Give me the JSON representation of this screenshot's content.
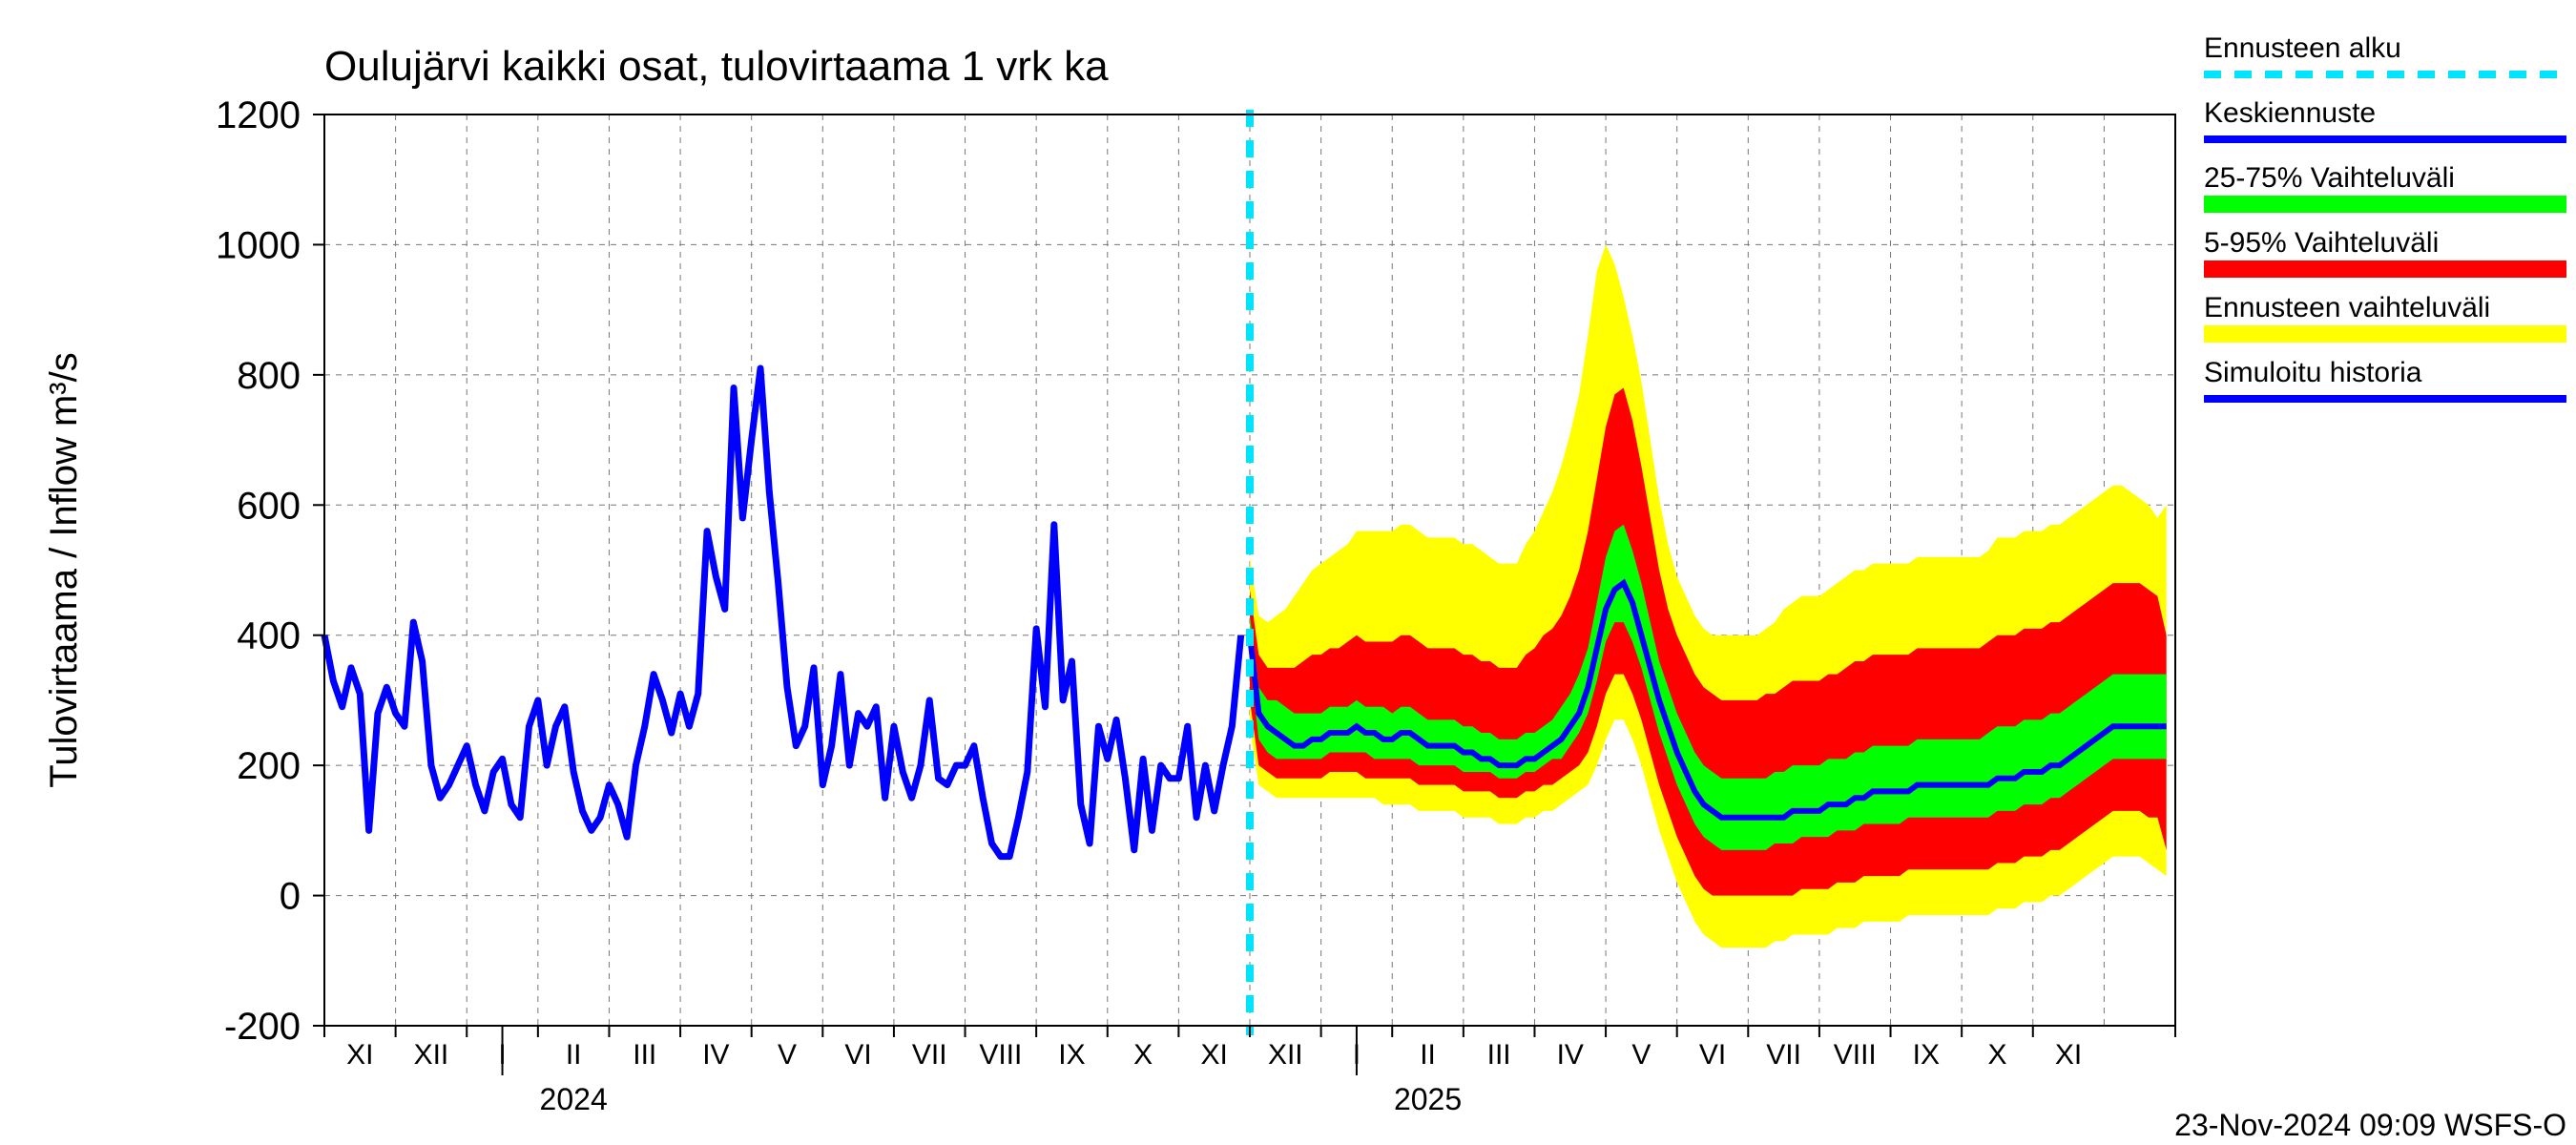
{
  "meta": {
    "title": "Oulujärvi kaikki osat, tulovirtaama 1 vrk ka",
    "ylabel": "Tulovirtaama / Inflow   m³/s",
    "footer": "23-Nov-2024 09:09 WSFS-O",
    "title_fontsize": 44,
    "ylabel_fontsize": 40,
    "footer_fontsize": 32,
    "tick_fontsize": 40,
    "xtick_fontsize": 30,
    "year_fontsize": 32
  },
  "colors": {
    "background": "#ffffff",
    "axis": "#000000",
    "grid": "#777777",
    "history_line": "#0000ff",
    "forecast_mean": "#0000ff",
    "band_inner": "#00ff00",
    "band_mid": "#ff0000",
    "band_outer": "#ffff00",
    "forecast_start": "#00e5ff",
    "text": "#000000"
  },
  "axes": {
    "ylim": [
      -200,
      1200
    ],
    "yticks": [
      -200,
      0,
      200,
      400,
      600,
      800,
      1000,
      1200
    ],
    "xlim_months": 26,
    "forecast_start_index": 13,
    "xticks_roman": [
      "XI",
      "XII",
      "I",
      "II",
      "III",
      "IV",
      "V",
      "VI",
      "VII",
      "VIII",
      "IX",
      "X",
      "XI",
      "XII",
      "I",
      "II",
      "III",
      "IV",
      "V",
      "VI",
      "VII",
      "VIII",
      "IX",
      "X",
      "XI"
    ],
    "year_labels": [
      {
        "label": "2024",
        "at_month_index": 3.5
      },
      {
        "label": "2025",
        "at_month_index": 15.5
      }
    ],
    "month_div_ticks_major": [
      2.5,
      14.5
    ]
  },
  "legend": {
    "items": [
      {
        "label": "Ennusteen alku",
        "color": "#00e5ff",
        "style": "dashed",
        "weight": 8
      },
      {
        "label": "Keskiennuste",
        "color": "#0000ff",
        "style": "solid",
        "weight": 8
      },
      {
        "label": "25-75% Vaihteluväli",
        "color": "#00ff00",
        "style": "band",
        "weight": 18
      },
      {
        "label": "5-95% Vaihteluväli",
        "color": "#ff0000",
        "style": "band",
        "weight": 18
      },
      {
        "label": "Ennusteen vaihteluväli",
        "color": "#ffff00",
        "style": "band",
        "weight": 18
      },
      {
        "label": "Simuloitu historia",
        "color": "#0000ff",
        "style": "solid",
        "weight": 8
      }
    ]
  },
  "line_widths": {
    "history": 7,
    "forecast_mean": 6,
    "forecast_start_dash": 8,
    "grid": 1,
    "axis": 2
  },
  "history": {
    "samples_per_month": 8,
    "values": [
      400,
      330,
      290,
      350,
      310,
      100,
      280,
      320,
      280,
      260,
      420,
      360,
      200,
      150,
      170,
      200,
      230,
      170,
      130,
      190,
      210,
      140,
      120,
      260,
      300,
      200,
      260,
      290,
      190,
      130,
      100,
      120,
      170,
      140,
      90,
      200,
      260,
      340,
      300,
      250,
      310,
      260,
      310,
      560,
      490,
      440,
      780,
      580,
      700,
      810,
      620,
      480,
      320,
      230,
      260,
      350,
      170,
      230,
      340,
      200,
      280,
      260,
      290,
      150,
      260,
      190,
      150,
      200,
      300,
      180,
      170,
      200,
      200,
      230,
      150,
      80,
      60,
      60,
      120,
      190,
      410,
      290,
      570,
      300,
      360,
      140,
      80,
      260,
      210,
      270,
      180,
      70,
      210,
      100,
      200,
      180,
      180,
      260,
      120,
      200,
      130,
      200,
      260,
      400
    ]
  },
  "forecast": {
    "samples_per_month": 8,
    "mean": [
      400,
      280,
      260,
      250,
      240,
      230,
      230,
      240,
      240,
      250,
      250,
      250,
      260,
      250,
      250,
      240,
      240,
      250,
      250,
      240,
      230,
      230,
      230,
      230,
      220,
      220,
      210,
      210,
      200,
      200,
      200,
      210,
      210,
      220,
      230,
      240,
      260,
      280,
      320,
      380,
      440,
      470,
      480,
      450,
      400,
      350,
      300,
      260,
      220,
      190,
      160,
      140,
      130,
      120,
      120,
      120,
      120,
      120,
      120,
      120,
      120,
      130,
      130,
      130,
      130,
      140,
      140,
      140,
      150,
      150,
      160,
      160,
      160,
      160,
      160,
      170,
      170,
      170,
      170,
      170,
      170,
      170,
      170,
      170,
      180,
      180,
      180,
      190,
      190,
      190,
      200,
      200,
      210,
      220,
      230,
      240,
      250,
      260,
      260,
      260,
      260,
      260,
      260,
      260
    ],
    "p25": [
      360,
      240,
      220,
      210,
      210,
      210,
      210,
      210,
      210,
      220,
      220,
      220,
      220,
      220,
      210,
      210,
      210,
      210,
      210,
      200,
      200,
      200,
      200,
      200,
      190,
      190,
      190,
      190,
      180,
      180,
      180,
      190,
      190,
      200,
      210,
      210,
      230,
      250,
      280,
      330,
      390,
      420,
      420,
      390,
      350,
      300,
      250,
      210,
      170,
      140,
      110,
      90,
      80,
      70,
      70,
      70,
      70,
      70,
      70,
      80,
      80,
      80,
      90,
      90,
      90,
      90,
      100,
      100,
      100,
      110,
      110,
      110,
      110,
      110,
      120,
      120,
      120,
      120,
      120,
      120,
      120,
      120,
      120,
      120,
      130,
      130,
      130,
      140,
      140,
      140,
      150,
      150,
      160,
      170,
      180,
      190,
      200,
      210,
      210,
      210,
      210,
      210,
      210,
      210
    ],
    "p75": [
      430,
      320,
      300,
      300,
      290,
      280,
      280,
      280,
      280,
      290,
      290,
      290,
      300,
      290,
      290,
      290,
      280,
      290,
      290,
      280,
      270,
      270,
      270,
      270,
      260,
      260,
      250,
      250,
      240,
      240,
      240,
      250,
      250,
      260,
      270,
      290,
      310,
      340,
      380,
      450,
      520,
      560,
      570,
      530,
      480,
      420,
      360,
      320,
      280,
      250,
      220,
      200,
      190,
      180,
      180,
      180,
      180,
      180,
      180,
      190,
      190,
      200,
      200,
      200,
      200,
      210,
      210,
      210,
      220,
      220,
      230,
      230,
      230,
      230,
      230,
      240,
      240,
      240,
      240,
      240,
      240,
      240,
      240,
      250,
      260,
      260,
      260,
      270,
      270,
      270,
      280,
      280,
      290,
      300,
      310,
      320,
      330,
      340,
      340,
      340,
      340,
      340,
      340,
      340
    ],
    "p5": [
      300,
      200,
      190,
      180,
      180,
      180,
      180,
      180,
      180,
      190,
      190,
      190,
      190,
      180,
      180,
      180,
      180,
      180,
      180,
      170,
      170,
      170,
      170,
      170,
      160,
      160,
      160,
      160,
      150,
      150,
      150,
      160,
      160,
      170,
      170,
      180,
      190,
      200,
      220,
      260,
      310,
      340,
      340,
      310,
      270,
      220,
      170,
      130,
      90,
      60,
      30,
      10,
      0,
      0,
      0,
      0,
      0,
      0,
      0,
      0,
      0,
      0,
      10,
      10,
      10,
      10,
      20,
      20,
      20,
      30,
      30,
      30,
      30,
      30,
      40,
      40,
      40,
      40,
      40,
      40,
      40,
      40,
      40,
      40,
      50,
      50,
      50,
      60,
      60,
      60,
      70,
      70,
      80,
      90,
      100,
      110,
      120,
      130,
      130,
      130,
      130,
      120,
      120,
      70
    ],
    "p95": [
      470,
      370,
      350,
      350,
      350,
      350,
      360,
      370,
      370,
      380,
      380,
      390,
      400,
      390,
      390,
      390,
      390,
      400,
      400,
      390,
      380,
      380,
      380,
      380,
      370,
      370,
      360,
      360,
      350,
      350,
      350,
      370,
      380,
      400,
      410,
      430,
      460,
      500,
      560,
      640,
      720,
      770,
      780,
      730,
      660,
      580,
      500,
      440,
      400,
      370,
      340,
      320,
      310,
      300,
      300,
      300,
      300,
      300,
      310,
      310,
      320,
      330,
      330,
      330,
      330,
      340,
      340,
      350,
      360,
      360,
      370,
      370,
      370,
      370,
      370,
      380,
      380,
      380,
      380,
      380,
      380,
      380,
      380,
      390,
      400,
      400,
      400,
      410,
      410,
      410,
      420,
      420,
      430,
      440,
      450,
      460,
      470,
      480,
      480,
      480,
      480,
      470,
      460,
      400
    ],
    "pmin": [
      260,
      170,
      160,
      150,
      150,
      150,
      150,
      150,
      150,
      150,
      150,
      150,
      150,
      150,
      150,
      140,
      140,
      140,
      140,
      130,
      130,
      130,
      130,
      130,
      120,
      120,
      120,
      120,
      110,
      110,
      110,
      120,
      120,
      130,
      130,
      140,
      150,
      160,
      170,
      200,
      240,
      270,
      270,
      240,
      200,
      150,
      100,
      60,
      20,
      -10,
      -40,
      -60,
      -70,
      -80,
      -80,
      -80,
      -80,
      -80,
      -80,
      -70,
      -70,
      -60,
      -60,
      -60,
      -60,
      -60,
      -50,
      -50,
      -50,
      -40,
      -40,
      -40,
      -40,
      -40,
      -30,
      -30,
      -30,
      -30,
      -30,
      -30,
      -30,
      -30,
      -30,
      -30,
      -20,
      -20,
      -20,
      -10,
      -10,
      -10,
      0,
      0,
      10,
      20,
      30,
      40,
      50,
      60,
      60,
      60,
      60,
      50,
      40,
      30
    ],
    "pmax": [
      520,
      430,
      420,
      430,
      440,
      460,
      480,
      500,
      510,
      520,
      530,
      540,
      560,
      560,
      560,
      560,
      560,
      570,
      570,
      560,
      550,
      550,
      550,
      550,
      540,
      540,
      530,
      520,
      510,
      510,
      510,
      540,
      560,
      590,
      620,
      660,
      710,
      770,
      860,
      960,
      1000,
      970,
      920,
      860,
      790,
      700,
      610,
      540,
      490,
      460,
      430,
      410,
      400,
      400,
      400,
      400,
      400,
      400,
      410,
      420,
      440,
      450,
      460,
      460,
      460,
      470,
      480,
      490,
      500,
      500,
      510,
      510,
      510,
      510,
      510,
      520,
      520,
      520,
      520,
      520,
      520,
      520,
      520,
      530,
      550,
      550,
      550,
      560,
      560,
      560,
      570,
      570,
      580,
      590,
      600,
      610,
      620,
      630,
      630,
      620,
      610,
      600,
      580,
      600
    ]
  }
}
